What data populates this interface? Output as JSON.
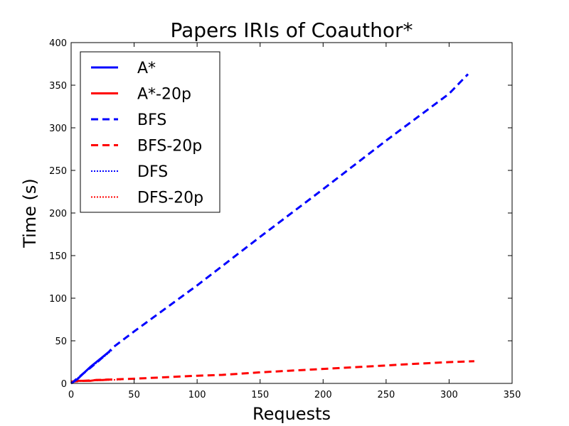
{
  "chart_data": {
    "type": "line",
    "title": "Papers IRIs of Coauthor*",
    "xlabel": "Requests",
    "ylabel": "Time (s)",
    "xlim": [
      0,
      350
    ],
    "ylim": [
      0,
      400
    ],
    "xticks": [
      0,
      50,
      100,
      150,
      200,
      250,
      300,
      350
    ],
    "yticks": [
      0,
      50,
      100,
      150,
      200,
      250,
      300,
      350,
      400
    ],
    "grid": false,
    "legend_position": "top-left",
    "series": [
      {
        "name": "A*",
        "color": "#0000ff",
        "style": "solid",
        "x": [
          0,
          5,
          10,
          15,
          20,
          25,
          30
        ],
        "y": [
          0,
          5,
          12,
          19,
          25,
          31,
          37
        ]
      },
      {
        "name": "A*-20p",
        "color": "#ff0000",
        "style": "solid",
        "x": [
          0,
          5,
          10,
          15,
          20,
          25,
          30
        ],
        "y": [
          2,
          3,
          3,
          3,
          4,
          4,
          4.5
        ]
      },
      {
        "name": "BFS",
        "color": "#0000ff",
        "style": "dashed",
        "x": [
          0,
          10,
          20,
          30,
          33,
          50,
          100,
          150,
          200,
          250,
          280,
          300,
          315
        ],
        "y": [
          0,
          12,
          24,
          37,
          42,
          61,
          115,
          172,
          228,
          285,
          318,
          340,
          363
        ]
      },
      {
        "name": "BFS-20p",
        "color": "#ff0000",
        "style": "dashed",
        "x": [
          0,
          20,
          40,
          50,
          100,
          120,
          140,
          150,
          200,
          250,
          260,
          300,
          320
        ],
        "y": [
          2,
          4,
          5,
          5.5,
          9,
          10,
          12,
          13,
          17,
          21,
          22,
          25,
          26
        ]
      },
      {
        "name": "DFS",
        "color": "#0000ff",
        "style": "dotted",
        "x": [
          0,
          5,
          10,
          15,
          20,
          25,
          30,
          33
        ],
        "y": [
          0,
          6,
          12,
          18,
          24,
          30,
          36,
          40
        ]
      },
      {
        "name": "DFS-20p",
        "color": "#ff0000",
        "style": "dotted",
        "x": [
          0,
          10,
          20,
          30,
          40
        ],
        "y": [
          2,
          3,
          3.5,
          4,
          4.5
        ]
      }
    ]
  }
}
